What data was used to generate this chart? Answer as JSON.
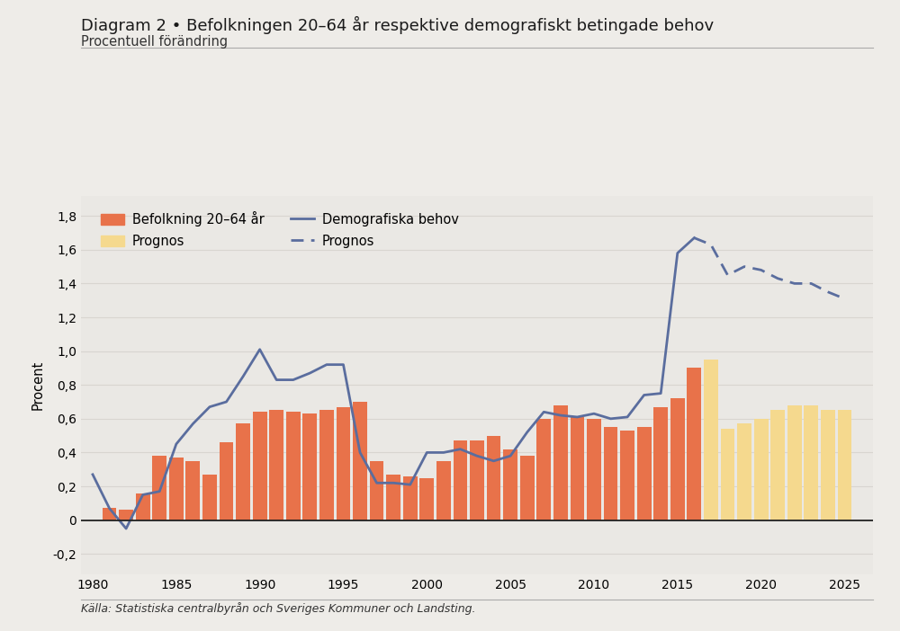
{
  "title": "Diagram 2 • Befolkningen 20–64 år respektive demografiskt betingade behov",
  "subtitle": "Procentuell förändring",
  "ylabel": "Procent",
  "source": "Källa: Statistiska centralbyrån och Sveriges Kommuner och Landsting.",
  "background_color": "#eeece8",
  "plot_bg_color": "#eae8e4",
  "ylim": [
    -0.32,
    1.92
  ],
  "yticks": [
    -0.2,
    0.0,
    0.2,
    0.4,
    0.6,
    0.8,
    1.0,
    1.2,
    1.4,
    1.6,
    1.8
  ],
  "xlim": [
    1979.3,
    2026.7
  ],
  "bar_years_orange": [
    1981,
    1982,
    1983,
    1984,
    1985,
    1986,
    1987,
    1988,
    1989,
    1990,
    1991,
    1992,
    1993,
    1994,
    1995,
    1996,
    1997,
    1998,
    1999,
    2000,
    2001,
    2002,
    2003,
    2004,
    2005,
    2006,
    2007,
    2008,
    2009,
    2010,
    2011,
    2012,
    2013,
    2014,
    2015,
    2016
  ],
  "bar_values_orange": [
    0.07,
    0.06,
    0.16,
    0.38,
    0.37,
    0.35,
    0.27,
    0.46,
    0.57,
    0.64,
    0.65,
    0.64,
    0.63,
    0.65,
    0.67,
    0.7,
    0.35,
    0.27,
    0.26,
    0.25,
    0.35,
    0.47,
    0.47,
    0.5,
    0.42,
    0.38,
    0.6,
    0.68,
    0.61,
    0.6,
    0.55,
    0.53,
    0.55,
    0.67,
    0.72,
    0.9
  ],
  "bar_color_orange": "#e8724a",
  "bar_years_yellow": [
    2017,
    2018,
    2019,
    2020,
    2021,
    2022,
    2023,
    2024,
    2025
  ],
  "bar_values_yellow": [
    0.95,
    0.54,
    0.57,
    0.6,
    0.65,
    0.68,
    0.68,
    0.65,
    0.65
  ],
  "bar_color_yellow": "#f5d98e",
  "line_solid_years": [
    1980,
    1981,
    1982,
    1983,
    1984,
    1985,
    1986,
    1987,
    1988,
    1989,
    1990,
    1991,
    1992,
    1993,
    1994,
    1995,
    1996,
    1997,
    1998,
    1999,
    2000,
    2001,
    2002,
    2003,
    2004,
    2005,
    2006,
    2007,
    2008,
    2009,
    2010,
    2011,
    2012,
    2013,
    2014,
    2015,
    2016
  ],
  "line_solid_values": [
    0.27,
    0.07,
    -0.05,
    0.15,
    0.17,
    0.45,
    0.57,
    0.67,
    0.7,
    0.85,
    1.01,
    0.83,
    0.83,
    0.87,
    0.92,
    0.92,
    0.4,
    0.22,
    0.22,
    0.21,
    0.4,
    0.4,
    0.42,
    0.38,
    0.35,
    0.38,
    0.52,
    0.64,
    0.62,
    0.61,
    0.63,
    0.6,
    0.61,
    0.74,
    0.75,
    1.58,
    1.67
  ],
  "line_solid_color": "#5a6d9e",
  "line_dashed_years": [
    2016,
    2017,
    2018,
    2019,
    2020,
    2021,
    2022,
    2023,
    2024,
    2025
  ],
  "line_dashed_values": [
    1.67,
    1.63,
    1.45,
    1.5,
    1.48,
    1.43,
    1.4,
    1.4,
    1.35,
    1.31
  ],
  "line_dashed_color": "#5a6d9e",
  "xticks": [
    1980,
    1985,
    1990,
    1995,
    2000,
    2005,
    2010,
    2015,
    2020,
    2025
  ],
  "grid_color": "#d8d5d0",
  "zero_line_color": "#222222",
  "title_fontsize": 13,
  "subtitle_fontsize": 10.5,
  "tick_fontsize": 10,
  "ylabel_fontsize": 10.5,
  "source_fontsize": 9,
  "legend_fontsize": 10.5
}
